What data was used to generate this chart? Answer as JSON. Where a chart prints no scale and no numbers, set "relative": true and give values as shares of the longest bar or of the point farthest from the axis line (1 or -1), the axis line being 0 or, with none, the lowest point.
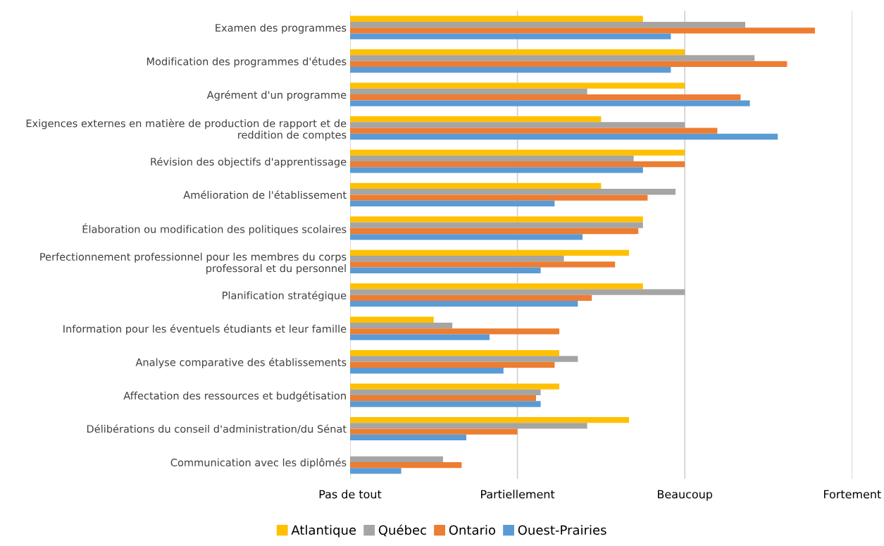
{
  "chart_data": {
    "type": "bar",
    "orientation": "horizontal",
    "relative": true,
    "categories": [
      "Examen des programmes",
      "Modification des programmes d'études",
      "Agrément d'un programme",
      "Exigences externes en matière de production de rapport et de\nreddition de comptes",
      "Révision des objectifs d'apprentissage",
      "Amélioration de l'établissement",
      "Élaboration ou modification des politiques scolaires",
      "Perfectionnement professionnel pour les membres du corps\nprofessoral et du personnel",
      "Planification stratégique",
      "Information pour les éventuels étudiants et leur famille",
      "Analyse comparative des établissements",
      "Affectation des ressources et budgétisation",
      "Délibérations du conseil d'administration/du Sénat",
      "Communication avec les diplômés"
    ],
    "series": [
      {
        "name": "Atlantique",
        "color": "#ffc000",
        "values": [
          0.63,
          0.72,
          0.72,
          0.54,
          0.72,
          0.54,
          0.63,
          0.6,
          0.63,
          0.18,
          0.45,
          0.45,
          0.6,
          null
        ]
      },
      {
        "name": "Québec",
        "color": "#a5a5a5",
        "values": [
          0.85,
          0.87,
          0.51,
          0.72,
          0.61,
          0.7,
          0.63,
          0.46,
          0.72,
          0.22,
          0.49,
          0.41,
          0.51,
          0.2
        ]
      },
      {
        "name": "Ontario",
        "color": "#ed7d31",
        "values": [
          1,
          0.94,
          0.84,
          0.79,
          0.72,
          0.64,
          0.62,
          0.57,
          0.52,
          0.45,
          0.44,
          0.4,
          0.36,
          0.24
        ]
      },
      {
        "name": "Ouest-Prairies",
        "color": "#5b9bd5",
        "values": [
          0.69,
          0.69,
          0.86,
          0.92,
          0.63,
          0.44,
          0.5,
          0.41,
          0.49,
          0.3,
          0.33,
          0.41,
          0.25,
          0.11
        ]
      }
    ],
    "ref_lines": [
      {
        "axis": "x",
        "value": 0,
        "label": "Pas de tout",
        "color": "#d0d0d0"
      },
      {
        "axis": "x",
        "value": 0.36,
        "label": "Partiellement",
        "color": "#d0d0d0"
      },
      {
        "axis": "x",
        "value": 0.72,
        "label": "Beaucoup",
        "color": "#d0d0d0"
      },
      {
        "axis": "x",
        "value": 1.08,
        "label": "Fortement",
        "color": "#d0d0d0"
      }
    ],
    "legend": "bottom"
  }
}
